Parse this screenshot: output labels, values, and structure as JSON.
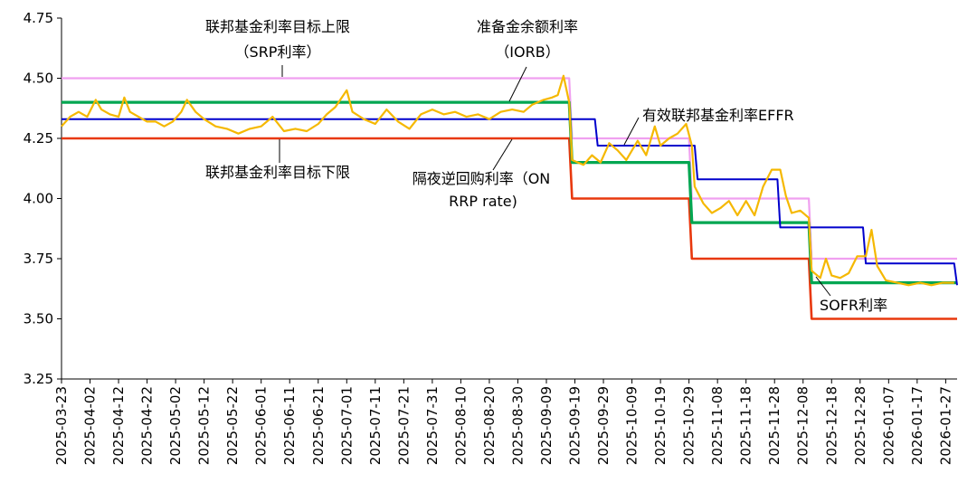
{
  "chart_data": {
    "type": "line",
    "title": "",
    "xlabel": "",
    "ylabel": "",
    "ylim": [
      3.25,
      4.75
    ],
    "yticks": [
      "3.25",
      "3.50",
      "3.75",
      "4.00",
      "4.25",
      "4.50",
      "4.75"
    ],
    "ytick_values": [
      3.25,
      3.5,
      3.75,
      4.0,
      4.25,
      4.5,
      4.75
    ],
    "x_start": "2025-03-23",
    "x_end": "2026-01-31",
    "xticks": [
      "2025-03-23",
      "2025-04-02",
      "2025-04-12",
      "2025-04-22",
      "2025-05-02",
      "2025-05-12",
      "2025-05-22",
      "2025-06-01",
      "2025-06-11",
      "2025-06-21",
      "2025-07-01",
      "2025-07-11",
      "2025-07-21",
      "2025-07-31",
      "2025-08-10",
      "2025-08-20",
      "2025-08-30",
      "2025-09-09",
      "2025-09-19",
      "2025-09-29",
      "2025-10-09",
      "2025-10-19",
      "2025-10-29",
      "2025-11-08",
      "2025-11-18",
      "2025-11-28",
      "2025-12-08",
      "2025-12-18",
      "2025-12-28",
      "2026-01-07",
      "2026-01-17",
      "2026-01-27"
    ],
    "grid": false,
    "legend": "none",
    "annotations": [
      {
        "key": "srp",
        "lines": [
          "联邦基金利率目标上限",
          "（SRP利率）"
        ]
      },
      {
        "key": "iorb",
        "lines": [
          "准备金余额利率",
          "（IORB）"
        ]
      },
      {
        "key": "lower",
        "lines": [
          "联邦基金利率目标下限"
        ]
      },
      {
        "key": "onrrp",
        "lines": [
          "隔夜逆回购利率（ON",
          "RRP rate)"
        ]
      },
      {
        "key": "effr",
        "lines": [
          "有效联邦基金利率EFFR"
        ]
      },
      {
        "key": "sofr",
        "lines": [
          "SOFR利率"
        ]
      }
    ],
    "series": [
      {
        "key": "upper",
        "color": "#f0a0f0",
        "points": [
          [
            "2025-03-23",
            4.5
          ],
          [
            "2025-09-17",
            4.5
          ],
          [
            "2025-09-18",
            4.25
          ],
          [
            "2025-10-29",
            4.25
          ],
          [
            "2025-10-30",
            4.0
          ],
          [
            "2025-12-10",
            4.0
          ],
          [
            "2025-12-11",
            3.75
          ],
          [
            "2026-01-31",
            3.75
          ]
        ]
      },
      {
        "key": "iorb",
        "color": "#00a651",
        "points": [
          [
            "2025-03-23",
            4.4
          ],
          [
            "2025-09-17",
            4.4
          ],
          [
            "2025-09-18",
            4.15
          ],
          [
            "2025-10-29",
            4.15
          ],
          [
            "2025-10-30",
            3.9
          ],
          [
            "2025-12-10",
            3.9
          ],
          [
            "2025-12-11",
            3.65
          ],
          [
            "2026-01-31",
            3.65
          ]
        ]
      },
      {
        "key": "lower",
        "color": "#e8380d",
        "points": [
          [
            "2025-03-23",
            4.25
          ],
          [
            "2025-09-17",
            4.25
          ],
          [
            "2025-09-18",
            4.0
          ],
          [
            "2025-10-29",
            4.0
          ],
          [
            "2025-10-30",
            3.75
          ],
          [
            "2025-12-10",
            3.75
          ],
          [
            "2025-12-11",
            3.5
          ],
          [
            "2026-01-31",
            3.5
          ]
        ]
      },
      {
        "key": "effr",
        "color": "#0000cc",
        "points": [
          [
            "2025-03-23",
            4.33
          ],
          [
            "2025-09-26",
            4.33
          ],
          [
            "2025-09-27",
            4.22
          ],
          [
            "2025-10-31",
            4.22
          ],
          [
            "2025-11-01",
            4.08
          ],
          [
            "2025-11-29",
            4.08
          ],
          [
            "2025-11-30",
            3.88
          ],
          [
            "2025-12-29",
            3.88
          ],
          [
            "2025-12-30",
            3.73
          ],
          [
            "2026-01-30",
            3.73
          ],
          [
            "2026-01-31",
            3.64
          ]
        ]
      },
      {
        "key": "sofr",
        "color": "#f5b800",
        "points": [
          [
            "2025-03-23",
            4.3
          ],
          [
            "2025-03-26",
            4.34
          ],
          [
            "2025-03-29",
            4.36
          ],
          [
            "2025-04-01",
            4.34
          ],
          [
            "2025-04-04",
            4.41
          ],
          [
            "2025-04-06",
            4.37
          ],
          [
            "2025-04-09",
            4.35
          ],
          [
            "2025-04-12",
            4.34
          ],
          [
            "2025-04-14",
            4.42
          ],
          [
            "2025-04-16",
            4.36
          ],
          [
            "2025-04-19",
            4.34
          ],
          [
            "2025-04-22",
            4.32
          ],
          [
            "2025-04-25",
            4.32
          ],
          [
            "2025-04-28",
            4.3
          ],
          [
            "2025-05-01",
            4.32
          ],
          [
            "2025-05-04",
            4.36
          ],
          [
            "2025-05-06",
            4.41
          ],
          [
            "2025-05-09",
            4.36
          ],
          [
            "2025-05-12",
            4.33
          ],
          [
            "2025-05-16",
            4.3
          ],
          [
            "2025-05-20",
            4.29
          ],
          [
            "2025-05-24",
            4.27
          ],
          [
            "2025-05-28",
            4.29
          ],
          [
            "2025-06-01",
            4.3
          ],
          [
            "2025-06-05",
            4.34
          ],
          [
            "2025-06-09",
            4.28
          ],
          [
            "2025-06-13",
            4.29
          ],
          [
            "2025-06-17",
            4.28
          ],
          [
            "2025-06-21",
            4.31
          ],
          [
            "2025-06-24",
            4.35
          ],
          [
            "2025-06-27",
            4.38
          ],
          [
            "2025-07-01",
            4.45
          ],
          [
            "2025-07-03",
            4.36
          ],
          [
            "2025-07-07",
            4.33
          ],
          [
            "2025-07-11",
            4.31
          ],
          [
            "2025-07-15",
            4.37
          ],
          [
            "2025-07-19",
            4.32
          ],
          [
            "2025-07-23",
            4.29
          ],
          [
            "2025-07-27",
            4.35
          ],
          [
            "2025-07-31",
            4.37
          ],
          [
            "2025-08-04",
            4.35
          ],
          [
            "2025-08-08",
            4.36
          ],
          [
            "2025-08-12",
            4.34
          ],
          [
            "2025-08-16",
            4.35
          ],
          [
            "2025-08-20",
            4.33
          ],
          [
            "2025-08-24",
            4.36
          ],
          [
            "2025-08-28",
            4.37
          ],
          [
            "2025-09-01",
            4.36
          ],
          [
            "2025-09-04",
            4.39
          ],
          [
            "2025-09-08",
            4.41
          ],
          [
            "2025-09-11",
            4.42
          ],
          [
            "2025-09-13",
            4.43
          ],
          [
            "2025-09-15",
            4.51
          ],
          [
            "2025-09-17",
            4.4
          ],
          [
            "2025-09-18",
            4.16
          ],
          [
            "2025-09-22",
            4.14
          ],
          [
            "2025-09-25",
            4.18
          ],
          [
            "2025-09-28",
            4.15
          ],
          [
            "2025-10-01",
            4.23
          ],
          [
            "2025-10-04",
            4.2
          ],
          [
            "2025-10-07",
            4.16
          ],
          [
            "2025-10-11",
            4.24
          ],
          [
            "2025-10-14",
            4.18
          ],
          [
            "2025-10-17",
            4.3
          ],
          [
            "2025-10-19",
            4.22
          ],
          [
            "2025-10-22",
            4.25
          ],
          [
            "2025-10-25",
            4.27
          ],
          [
            "2025-10-28",
            4.31
          ],
          [
            "2025-10-30",
            4.22
          ],
          [
            "2025-10-31",
            4.05
          ],
          [
            "2025-11-03",
            3.98
          ],
          [
            "2025-11-06",
            3.94
          ],
          [
            "2025-11-09",
            3.96
          ],
          [
            "2025-11-12",
            3.99
          ],
          [
            "2025-11-15",
            3.93
          ],
          [
            "2025-11-18",
            3.99
          ],
          [
            "2025-11-21",
            3.93
          ],
          [
            "2025-11-24",
            4.05
          ],
          [
            "2025-11-27",
            4.12
          ],
          [
            "2025-11-30",
            4.12
          ],
          [
            "2025-12-02",
            4.01
          ],
          [
            "2025-12-04",
            3.94
          ],
          [
            "2025-12-07",
            3.95
          ],
          [
            "2025-12-10",
            3.92
          ],
          [
            "2025-12-11",
            3.7
          ],
          [
            "2025-12-14",
            3.67
          ],
          [
            "2025-12-16",
            3.75
          ],
          [
            "2025-12-18",
            3.68
          ],
          [
            "2025-12-21",
            3.67
          ],
          [
            "2025-12-24",
            3.69
          ],
          [
            "2025-12-27",
            3.76
          ],
          [
            "2025-12-30",
            3.76
          ],
          [
            "2026-01-01",
            3.87
          ],
          [
            "2026-01-03",
            3.72
          ],
          [
            "2026-01-06",
            3.66
          ],
          [
            "2026-01-10",
            3.65
          ],
          [
            "2026-01-14",
            3.64
          ],
          [
            "2026-01-18",
            3.65
          ],
          [
            "2026-01-22",
            3.64
          ],
          [
            "2026-01-26",
            3.65
          ],
          [
            "2026-01-30",
            3.65
          ]
        ]
      }
    ]
  }
}
